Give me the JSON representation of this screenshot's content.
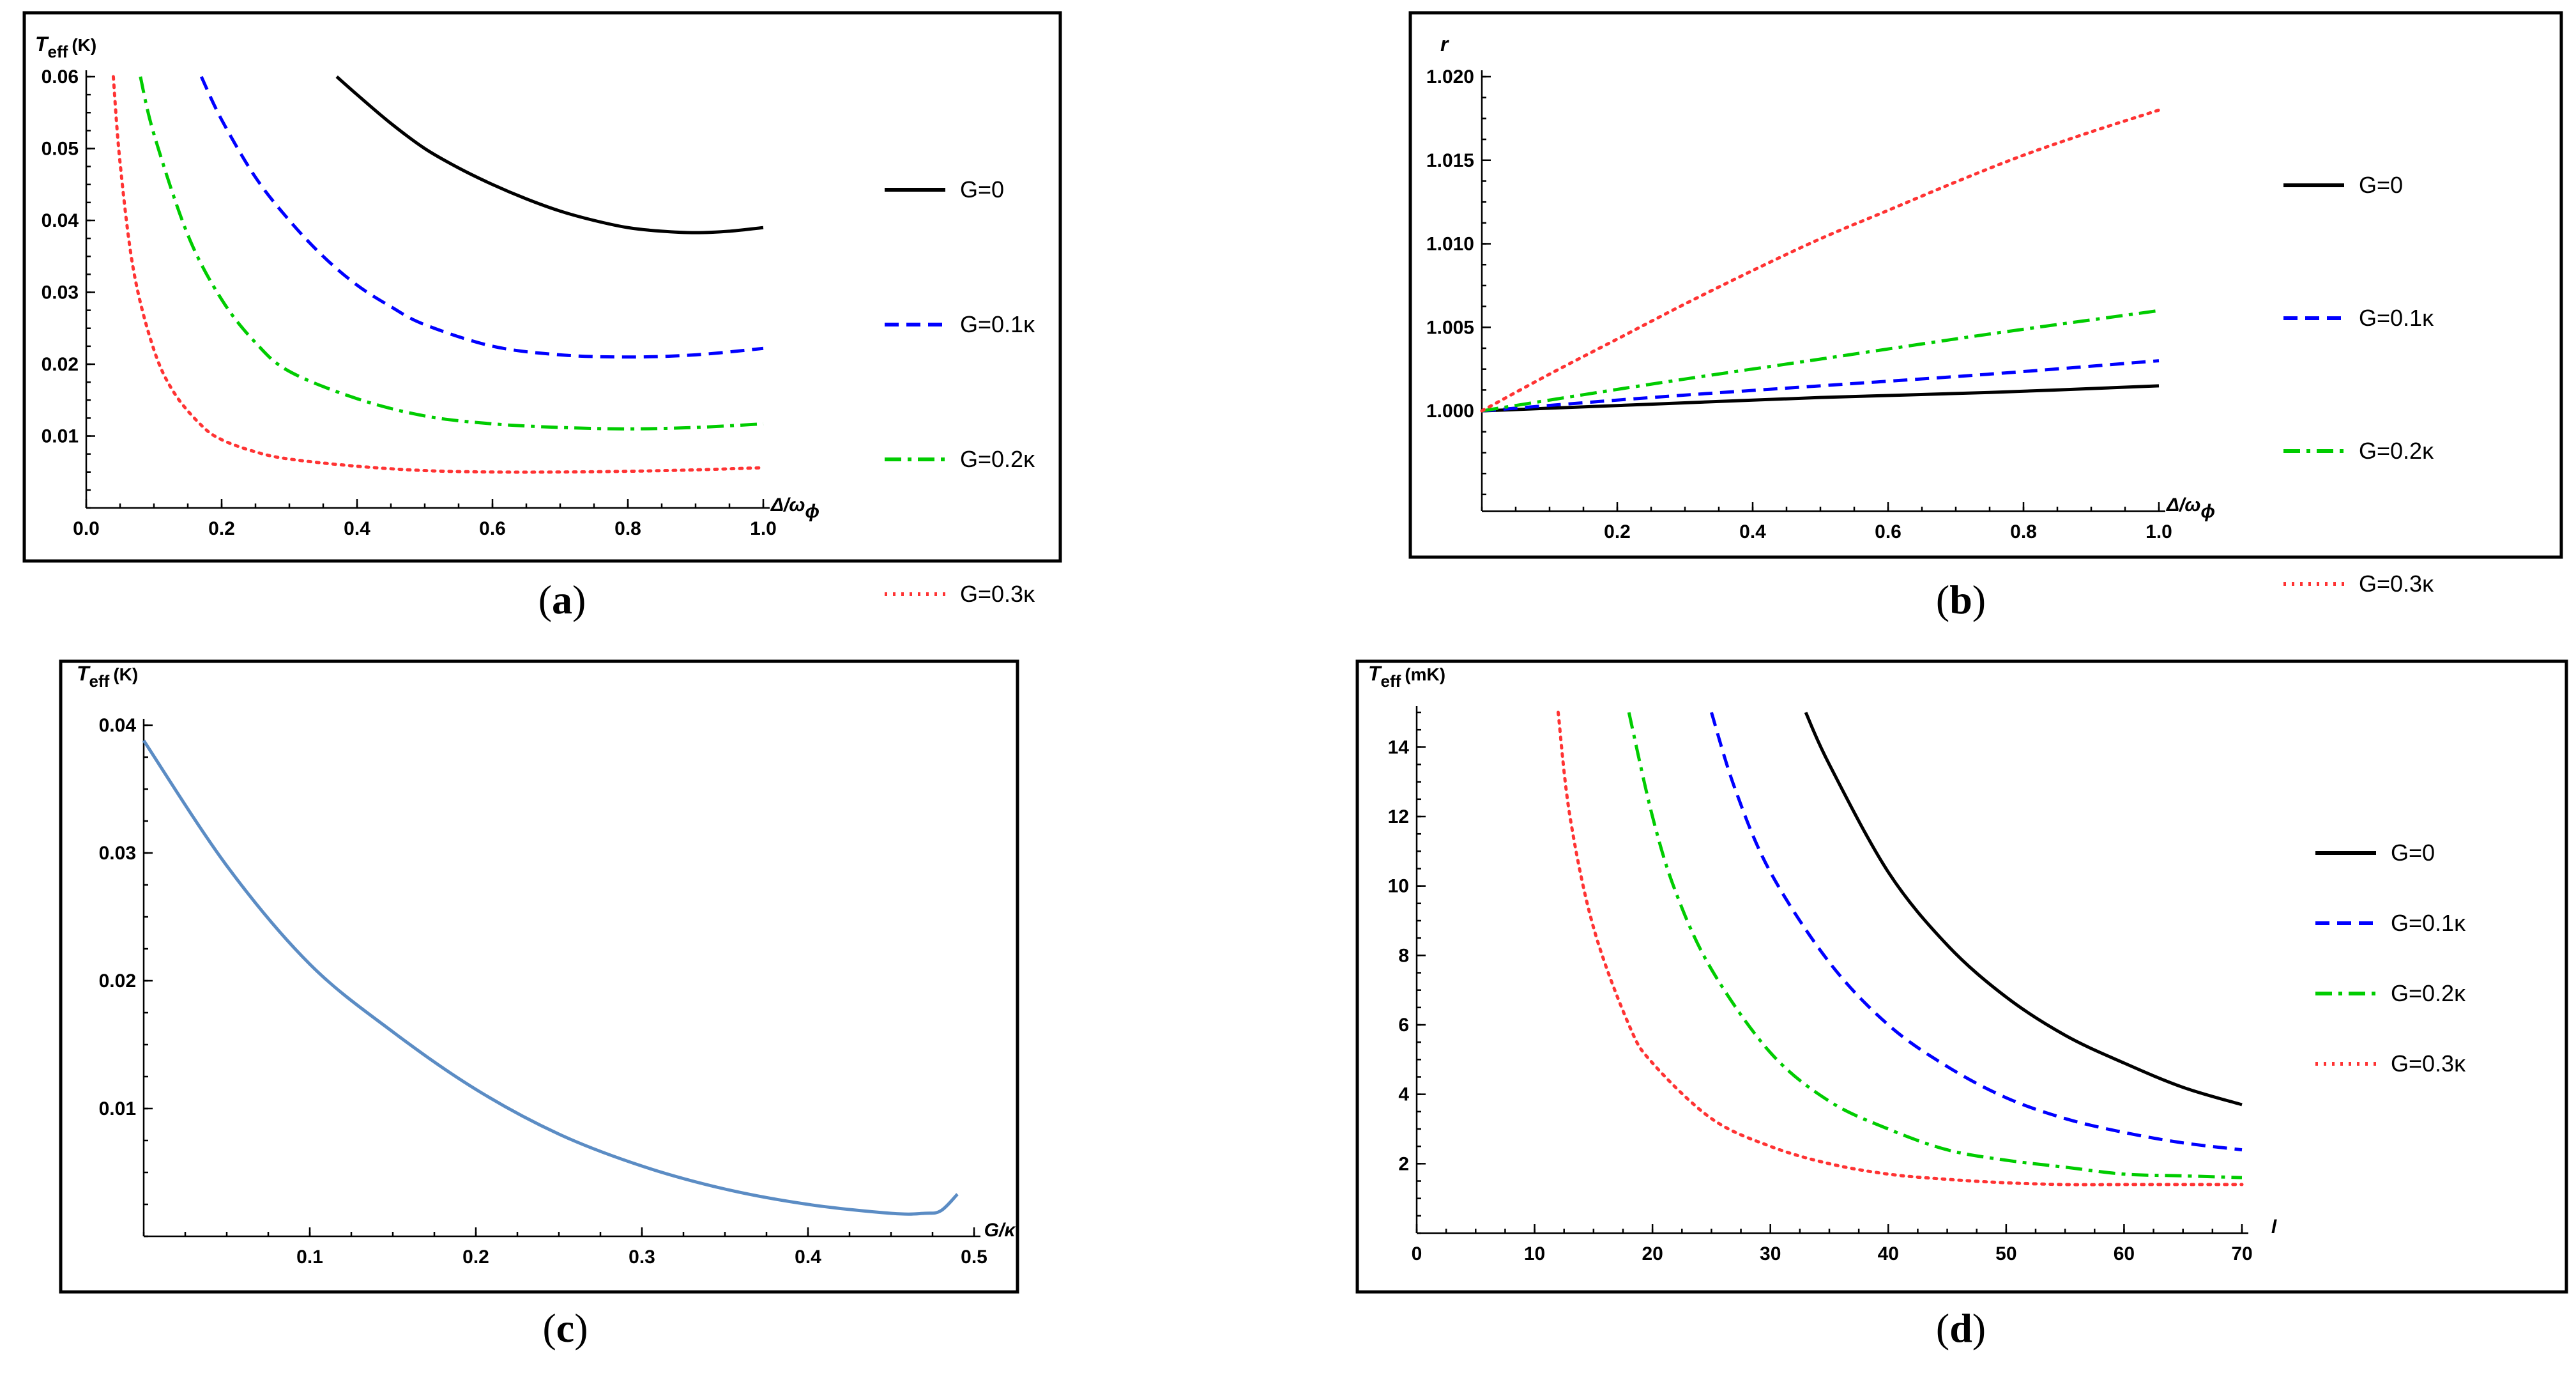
{
  "chart_data": [
    {
      "id": "a",
      "type": "line",
      "caption_open": "(",
      "caption_letter": "a",
      "caption_close": ")",
      "ylabel_main": "T",
      "ylabel_sub": "eff",
      "ylabel_unit": "(K)",
      "xlabel": "Δ/ω",
      "xlabel_sub": "ϕ",
      "xlim": [
        0,
        1.0
      ],
      "ylim": [
        0,
        0.06
      ],
      "xticks": [
        0.0,
        0.2,
        0.4,
        0.6,
        0.8,
        1.0
      ],
      "xtick_labels": [
        "0.0",
        "0.2",
        "0.4",
        "0.6",
        "0.8",
        "1.0"
      ],
      "yticks": [
        0.01,
        0.02,
        0.03,
        0.04,
        0.05,
        0.06
      ],
      "ytick_labels": [
        "0.01",
        "0.02",
        "0.03",
        "0.04",
        "0.05",
        "0.06"
      ],
      "series": [
        {
          "name": "G=0",
          "style": "solid",
          "color": "#000000",
          "x": [
            0.37,
            0.4,
            0.45,
            0.5,
            0.55,
            0.6,
            0.65,
            0.7,
            0.75,
            0.8,
            0.85,
            0.9,
            0.95,
            1.0
          ],
          "y": [
            0.06,
            0.0575,
            0.0535,
            0.05,
            0.0473,
            0.045,
            0.043,
            0.0413,
            0.04,
            0.039,
            0.0385,
            0.0383,
            0.0385,
            0.039
          ]
        },
        {
          "name": "G=0.1κ",
          "style": "dashed",
          "color": "#0000ff",
          "x": [
            0.17,
            0.2,
            0.25,
            0.3,
            0.35,
            0.4,
            0.45,
            0.5,
            0.6,
            0.7,
            0.8,
            0.9,
            1.0
          ],
          "y": [
            0.06,
            0.054,
            0.046,
            0.04,
            0.035,
            0.031,
            0.028,
            0.0255,
            0.0225,
            0.0213,
            0.021,
            0.0213,
            0.0222
          ]
        },
        {
          "name": "G=0.2κ",
          "style": "dashdot",
          "color": "#00cc00",
          "x": [
            0.08,
            0.1,
            0.15,
            0.2,
            0.25,
            0.3,
            0.4,
            0.5,
            0.6,
            0.7,
            0.8,
            0.9,
            1.0
          ],
          "y": [
            0.06,
            0.052,
            0.038,
            0.029,
            0.023,
            0.019,
            0.0152,
            0.0128,
            0.0117,
            0.0112,
            0.011,
            0.0112,
            0.0117
          ]
        },
        {
          "name": "G=0.3κ",
          "style": "dotted",
          "color": "#ff3333",
          "x": [
            0.04,
            0.05,
            0.07,
            0.1,
            0.13,
            0.17,
            0.2,
            0.25,
            0.3,
            0.4,
            0.5,
            0.6,
            0.7,
            0.8,
            0.9,
            1.0
          ],
          "y": [
            0.06,
            0.048,
            0.033,
            0.022,
            0.016,
            0.0115,
            0.0095,
            0.0078,
            0.0068,
            0.0058,
            0.0052,
            0.005,
            0.005,
            0.0051,
            0.0053,
            0.0056
          ]
        }
      ],
      "legend": [
        "G=0",
        "G=0.1κ",
        "G=0.2κ",
        "G=0.3κ"
      ]
    },
    {
      "id": "b",
      "type": "line",
      "caption_open": "(",
      "caption_letter": "b",
      "caption_close": ")",
      "ylabel_main": "r",
      "xlabel": "Δ/ω",
      "xlabel_sub": "ϕ",
      "xlim": [
        0,
        1.0
      ],
      "ylim": [
        0.994,
        1.02
      ],
      "xticks": [
        0.2,
        0.4,
        0.6,
        0.8,
        1.0
      ],
      "xtick_labels": [
        "0.2",
        "0.4",
        "0.6",
        "0.8",
        "1.0"
      ],
      "yticks": [
        1.0,
        1.005,
        1.01,
        1.015,
        1.02
      ],
      "ytick_labels": [
        "1.000",
        "1.005",
        "1.010",
        "1.015",
        "1.020"
      ],
      "series": [
        {
          "name": "G=0",
          "style": "solid",
          "color": "#000000",
          "x": [
            0,
            0.25,
            0.5,
            0.75,
            1.0
          ],
          "y": [
            1.0,
            1.0004,
            1.0008,
            1.0011,
            1.0015
          ]
        },
        {
          "name": "G=0.1κ",
          "style": "dashed",
          "color": "#0000ff",
          "x": [
            0,
            0.25,
            0.5,
            0.75,
            1.0
          ],
          "y": [
            1.0,
            1.0008,
            1.0015,
            1.0022,
            1.003
          ]
        },
        {
          "name": "G=0.2κ",
          "style": "dashdot",
          "color": "#00cc00",
          "x": [
            0,
            0.25,
            0.5,
            0.75,
            1.0
          ],
          "y": [
            1.0,
            1.0016,
            1.0031,
            1.0046,
            1.006
          ]
        },
        {
          "name": "G=0.3κ",
          "style": "dotted",
          "color": "#ff3333",
          "x": [
            0,
            0.1,
            0.2,
            0.3,
            0.4,
            0.5,
            0.6,
            0.7,
            0.8,
            0.9,
            1.0
          ],
          "y": [
            1.0,
            1.0022,
            1.0043,
            1.0064,
            1.0084,
            1.0103,
            1.012,
            1.0137,
            1.0153,
            1.0167,
            1.018
          ]
        }
      ],
      "legend": [
        "G=0",
        "G=0.1κ",
        "G=0.2κ",
        "G=0.3κ"
      ]
    },
    {
      "id": "c",
      "type": "line",
      "caption_open": "(",
      "caption_letter": "c",
      "caption_close": ")",
      "ylabel_main": "T",
      "ylabel_sub": "eff",
      "ylabel_unit": "(K)",
      "xlabel": "G/κ",
      "xlabel_sub": "",
      "xlim": [
        0,
        0.5
      ],
      "ylim": [
        0,
        0.04
      ],
      "xticks": [
        0.1,
        0.2,
        0.3,
        0.4,
        0.5
      ],
      "xtick_labels": [
        "0.1",
        "0.2",
        "0.3",
        "0.4",
        "0.5"
      ],
      "yticks": [
        0.01,
        0.02,
        0.03,
        0.04
      ],
      "ytick_labels": [
        "0.01",
        "0.02",
        "0.03",
        "0.04"
      ],
      "series": [
        {
          "name": "",
          "style": "solid",
          "color": "#5b8cc4",
          "x": [
            0,
            0.05,
            0.1,
            0.15,
            0.2,
            0.25,
            0.3,
            0.35,
            0.4,
            0.45,
            0.47,
            0.48,
            0.49
          ],
          "y": [
            0.0388,
            0.029,
            0.0213,
            0.016,
            0.0115,
            0.008,
            0.0055,
            0.0037,
            0.0025,
            0.0018,
            0.0018,
            0.002,
            0.0033
          ]
        }
      ],
      "legend": []
    },
    {
      "id": "d",
      "type": "line",
      "caption_open": "(",
      "caption_letter": "d",
      "caption_close": ")",
      "ylabel_main": "T",
      "ylabel_sub": "eff",
      "ylabel_unit": "(mK)",
      "xlabel": "l",
      "xlabel_sub": "",
      "xlim": [
        0,
        70
      ],
      "ylim": [
        0,
        15
      ],
      "xticks": [
        0,
        10,
        20,
        30,
        40,
        50,
        60,
        70
      ],
      "xtick_labels": [
        "0",
        "10",
        "20",
        "30",
        "40",
        "50",
        "60",
        "70"
      ],
      "yticks": [
        2,
        4,
        6,
        8,
        10,
        12,
        14
      ],
      "ytick_labels": [
        "2",
        "4",
        "6",
        "8",
        "10",
        "12",
        "14"
      ],
      "series": [
        {
          "name": "G=0",
          "style": "solid",
          "color": "#000000",
          "x": [
            33,
            35,
            40,
            45,
            50,
            55,
            60,
            65,
            70
          ],
          "y": [
            15,
            13.5,
            10.4,
            8.3,
            6.8,
            5.7,
            4.9,
            4.2,
            3.7
          ]
        },
        {
          "name": "G=0.1κ",
          "style": "dashed",
          "color": "#0000ff",
          "x": [
            25,
            27,
            30,
            35,
            40,
            45,
            50,
            55,
            60,
            65,
            70
          ],
          "y": [
            15,
            12.8,
            10.4,
            7.8,
            6.0,
            4.8,
            3.9,
            3.3,
            2.9,
            2.6,
            2.4
          ]
        },
        {
          "name": "G=0.2κ",
          "style": "dashdot",
          "color": "#00cc00",
          "x": [
            18,
            20,
            22,
            25,
            30,
            35,
            40,
            45,
            50,
            55,
            60,
            65,
            70
          ],
          "y": [
            15,
            12.0,
            9.8,
            7.6,
            5.2,
            3.8,
            3.0,
            2.4,
            2.1,
            1.9,
            1.7,
            1.65,
            1.6
          ]
        },
        {
          "name": "G=0.3κ",
          "style": "dotted",
          "color": "#ff3333",
          "x": [
            12,
            13,
            15,
            18,
            20,
            25,
            30,
            35,
            40,
            45,
            50,
            55,
            60,
            65,
            70
          ],
          "y": [
            15,
            12.0,
            8.8,
            6.0,
            4.9,
            3.3,
            2.5,
            2.0,
            1.7,
            1.55,
            1.45,
            1.4,
            1.4,
            1.4,
            1.4
          ]
        }
      ],
      "legend": [
        "G=0",
        "G=0.1κ",
        "G=0.2κ",
        "G=0.3κ"
      ]
    }
  ]
}
